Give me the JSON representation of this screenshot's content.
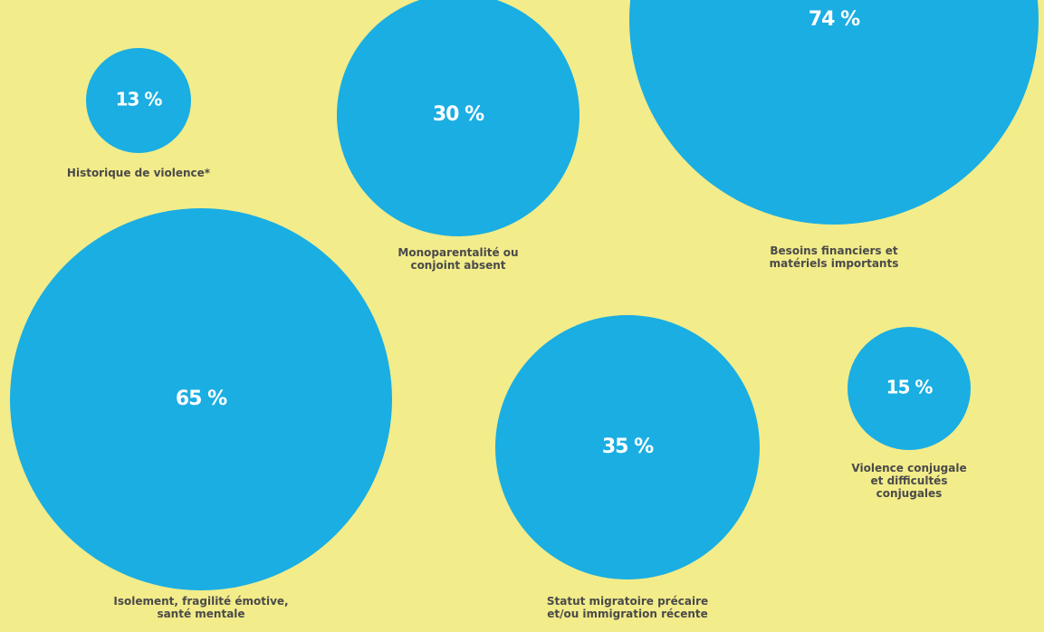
{
  "chart_data": {
    "type": "bubble",
    "unit": "%",
    "colors": {
      "background": "#f2ec8a",
      "bubble": "#1aaee3",
      "value_text": "#ffffff",
      "label_text": "#4a4a4a"
    },
    "items": [
      {
        "value_label": "13 %",
        "value": 13,
        "label_lines": [
          "Historique de violence*"
        ]
      },
      {
        "value_label": "30 %",
        "value": 30,
        "label_lines": [
          "Monoparentalité ou",
          "conjoint absent"
        ]
      },
      {
        "value_label": "74 %",
        "value": 74,
        "label_lines": [
          "Besoins financiers et",
          "matériels importants"
        ]
      },
      {
        "value_label": "65 %",
        "value": 65,
        "label_lines": [
          "Isolement, fragilité émotive,",
          "santé mentale"
        ]
      },
      {
        "value_label": "35 %",
        "value": 35,
        "label_lines": [
          "Statut migratoire précaire",
          "et/ou immigration récente"
        ]
      },
      {
        "value_label": "15 %",
        "value": 15,
        "label_lines": [
          "Violence conjugale",
          "et difficultés",
          "conjugales"
        ]
      }
    ]
  }
}
